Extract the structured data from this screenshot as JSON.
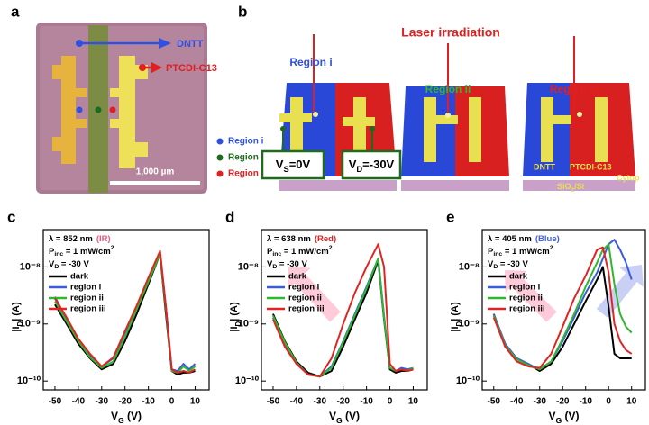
{
  "figure": {
    "panel_a": {
      "label": "a",
      "dntt": "DNTT",
      "ptcdi": "PTCDI-C13",
      "regions": [
        "Region i",
        "Region ii",
        "Region iii"
      ],
      "scale_bar": "1,000 µm"
    },
    "panel_b": {
      "label": "b",
      "laser": "Laser irradiation",
      "regions": [
        "Region  i",
        "Region  ii",
        "Region  iii"
      ],
      "source": {
        "text": "V",
        "sub": "S",
        "rest": "=0V"
      },
      "drain": {
        "text": "V",
        "sub": "D",
        "rest": "=-30V"
      },
      "layers": {
        "dntt": "DNTT",
        "ptcdi": "PTCDI-C13",
        "cytop": "Cytop",
        "substrate": {
          "text": "SiO",
          "sub": "2",
          "rest": "/Si"
        }
      }
    }
  },
  "chart_data": [
    {
      "type": "line",
      "panel_label": "c",
      "annotation": {
        "wavelength": "λ = 852 nm",
        "light": "(IR)",
        "light_color": "#e8587e",
        "power": {
          "text": "P",
          "sub": "inc",
          "rest": " = 1 mW/cm",
          "sup": "2"
        },
        "drain": {
          "text": "V",
          "sub": "D",
          "rest": " = -30 V"
        }
      },
      "x_label": {
        "text": "V",
        "sub": "G",
        "rest": " (V)"
      },
      "y_label": {
        "text": "|I",
        "sub": "D",
        "rest": "| (A)"
      },
      "log_y": true,
      "xlim": [
        -55,
        16
      ],
      "ylim": [
        7e-11,
        4.5e-08
      ],
      "xticks": [
        -50,
        -40,
        -30,
        -20,
        -10,
        0,
        10
      ],
      "yticks": [
        {
          "value": 1e-10,
          "label": "10⁻¹⁰"
        },
        {
          "value": 1e-09,
          "label": "10⁻⁹"
        },
        {
          "value": 1e-08,
          "label": "10⁻⁸"
        }
      ],
      "x": [
        -50,
        -45,
        -40,
        -35,
        -30,
        -25,
        -20,
        -15,
        -10,
        -5,
        -2.5,
        0,
        2.5,
        5,
        7.5,
        10
      ],
      "series": [
        {
          "name": "dark",
          "color": "#000000",
          "values": [
            2.2e-09,
            1e-09,
            4.5e-10,
            2.5e-10,
            1.6e-10,
            2e-10,
            5e-10,
            1.5e-09,
            5e-09,
            1.7e-08,
            1.5e-09,
            1.5e-10,
            1.3e-10,
            1.4e-10,
            1.4e-10,
            1.5e-10
          ]
        },
        {
          "name": "region i",
          "color": "#3b5bdb",
          "values": [
            3e-09,
            1.2e-09,
            5e-10,
            2.8e-10,
            1.8e-10,
            2.5e-10,
            7e-10,
            2e-09,
            6e-09,
            1.8e-08,
            2e-09,
            1.6e-10,
            1.5e-10,
            2e-10,
            1.6e-10,
            2e-10
          ]
        },
        {
          "name": "region ii",
          "color": "#2db82d",
          "values": [
            2.5e-09,
            1.1e-09,
            5e-10,
            2.6e-10,
            1.7e-10,
            2.2e-10,
            6e-10,
            1.8e-09,
            5.5e-09,
            1.7e-08,
            1.8e-09,
            1.5e-10,
            1.4e-10,
            1.8e-10,
            1.5e-10,
            1.8e-10
          ]
        },
        {
          "name": "region iii",
          "color": "#e02424",
          "values": [
            2.8e-09,
            1.3e-09,
            5.5e-10,
            3e-10,
            1.8e-10,
            2.6e-10,
            7.5e-10,
            2.1e-09,
            6.5e-09,
            1.9e-08,
            2e-09,
            1.6e-10,
            1.4e-10,
            1.5e-10,
            1.4e-10,
            1.6e-10
          ]
        }
      ]
    },
    {
      "type": "line",
      "panel_label": "d",
      "annotation": {
        "wavelength": "λ = 638 nm",
        "light": "(Red)",
        "light_color": "#e02020",
        "power": {
          "text": "P",
          "sub": "inc",
          "rest": " = 1 mW/cm",
          "sup": "2"
        },
        "drain": {
          "text": "V",
          "sub": "D",
          "rest": " = -30 V"
        }
      },
      "x_label": {
        "text": "V",
        "sub": "G",
        "rest": " (V)"
      },
      "y_label": {
        "text": "|I",
        "sub": "D",
        "rest": "| (A)"
      },
      "log_y": true,
      "xlim": [
        -55,
        16
      ],
      "ylim": [
        7e-11,
        4.5e-08
      ],
      "xticks": [
        -50,
        -40,
        -30,
        -20,
        -10,
        0,
        10
      ],
      "yticks": [
        {
          "value": 1e-10,
          "label": "10⁻¹⁰"
        },
        {
          "value": 1e-09,
          "label": "10⁻⁹"
        },
        {
          "value": 1e-08,
          "label": "10⁻⁸"
        }
      ],
      "x": [
        -50,
        -45,
        -40,
        -35,
        -30,
        -25,
        -20,
        -15,
        -10,
        -5,
        -2.5,
        0,
        2.5,
        5,
        7.5,
        10
      ],
      "series": [
        {
          "name": "dark",
          "color": "#000000",
          "values": [
            1.5e-09,
            5e-10,
            2.2e-10,
            1.4e-10,
            1.2e-10,
            1.5e-10,
            4e-10,
            1.2e-09,
            3.5e-09,
            1.3e-08,
            1.2e-09,
            1.6e-10,
            1.4e-10,
            1.5e-10,
            1.5e-10,
            1.6e-10
          ]
        },
        {
          "name": "region i",
          "color": "#3b5bdb",
          "values": [
            1.3e-09,
            4.5e-10,
            2e-10,
            1.3e-10,
            1.2e-10,
            1.8e-10,
            5e-10,
            1.5e-09,
            4.5e-09,
            1.4e-08,
            1.4e-09,
            1.7e-10,
            1.5e-10,
            1.7e-10,
            1.6e-10,
            1.7e-10
          ]
        },
        {
          "name": "region ii",
          "color": "#2db82d",
          "values": [
            1.4e-09,
            4.8e-10,
            2.1e-10,
            1.3e-10,
            1.2e-10,
            1.7e-10,
            4.8e-10,
            1.4e-09,
            4.2e-09,
            1.4e-08,
            1.3e-09,
            1.7e-10,
            1.5e-10,
            1.6e-10,
            1.5e-10,
            1.7e-10
          ]
        },
        {
          "name": "region iii",
          "color": "#e02424",
          "values": [
            1.2e-09,
            4e-10,
            2e-10,
            1.3e-10,
            1.2e-10,
            2.5e-10,
            1e-09,
            3.5e-09,
            1e-08,
            2.5e-08,
            1e-08,
            2e-10,
            1.5e-10,
            1.6e-10,
            1.5e-10,
            1.6e-10
          ]
        }
      ]
    },
    {
      "type": "line",
      "panel_label": "e",
      "annotation": {
        "wavelength": "λ = 405 nm",
        "light": "(Blue)",
        "light_color": "#4060e0",
        "power": {
          "text": "P",
          "sub": "inc",
          "rest": " = 1 mW/cm",
          "sup": "2"
        },
        "drain": {
          "text": "V",
          "sub": "D",
          "rest": " = -30 V"
        }
      },
      "x_label": {
        "text": "V",
        "sub": "G",
        "rest": " (V)"
      },
      "y_label": {
        "text": "|I",
        "sub": "D",
        "rest": "| (A)"
      },
      "log_y": true,
      "xlim": [
        -55,
        16
      ],
      "ylim": [
        7e-11,
        4.5e-08
      ],
      "xticks": [
        -50,
        -40,
        -30,
        -20,
        -10,
        0,
        10
      ],
      "yticks": [
        {
          "value": 1e-10,
          "label": "10⁻¹⁰"
        },
        {
          "value": 1e-09,
          "label": "10⁻⁹"
        },
        {
          "value": 1e-08,
          "label": "10⁻⁸"
        }
      ],
      "x": [
        -50,
        -45,
        -40,
        -35,
        -30,
        -25,
        -20,
        -15,
        -10,
        -5,
        -2.5,
        0,
        2.5,
        5,
        7.5,
        10
      ],
      "series": [
        {
          "name": "dark",
          "color": "#000000",
          "values": [
            1.5e-09,
            4e-10,
            2.5e-10,
            2e-10,
            1.5e-10,
            2e-10,
            4e-10,
            1e-09,
            2.5e-09,
            6e-09,
            1e-08,
            2e-09,
            3e-10,
            2.5e-10,
            2.5e-10,
            2.5e-10
          ]
        },
        {
          "name": "region i",
          "color": "#3b5bdb",
          "values": [
            1.5e-09,
            4.5e-10,
            2.5e-10,
            2e-10,
            1.6e-10,
            2.2e-10,
            5e-10,
            1.3e-09,
            3.5e-09,
            8e-09,
            1.4e-08,
            2.5e-08,
            3e-08,
            2e-08,
            1.2e-08,
            6e-09
          ]
        },
        {
          "name": "region ii",
          "color": "#2db82d",
          "values": [
            1.4e-09,
            4.2e-10,
            2.4e-10,
            1.9e-10,
            1.6e-10,
            2.2e-10,
            5.5e-10,
            1.5e-09,
            4.5e-09,
            1.2e-08,
            2e-08,
            2.5e-08,
            5e-09,
            1.5e-09,
            9e-10,
            7e-10
          ]
        },
        {
          "name": "region iii",
          "color": "#e02424",
          "values": [
            1.3e-09,
            4e-10,
            2.2e-10,
            1.8e-10,
            1.7e-10,
            3e-10,
            9e-10,
            2.8e-09,
            7e-09,
            2e-08,
            2.2e-08,
            8e-09,
            1e-09,
            5e-10,
            3.5e-10,
            3e-10
          ]
        }
      ]
    }
  ]
}
